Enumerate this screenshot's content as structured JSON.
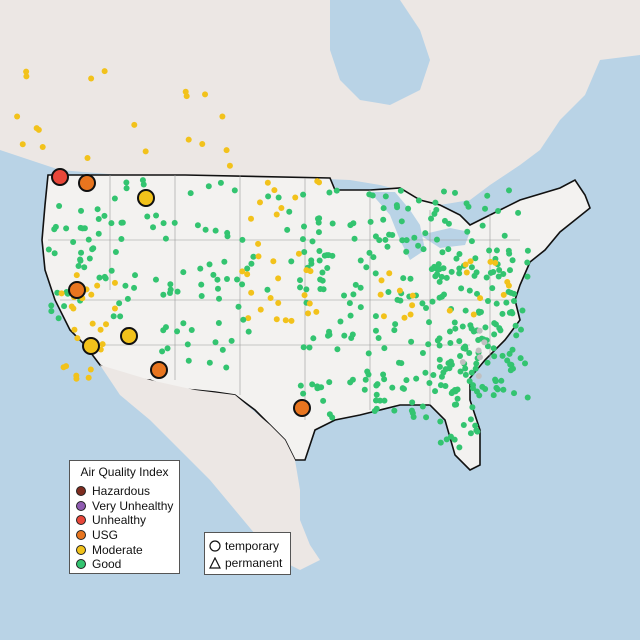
{
  "legend": {
    "title": "Air Quality Index",
    "categories": [
      {
        "label": "Hazardous",
        "color": "#7e2c1f"
      },
      {
        "label": "Very Unhealthy",
        "color": "#8f5bb1"
      },
      {
        "label": "Unhealthy",
        "color": "#e8473a"
      },
      {
        "label": "USG",
        "color": "#e8751f"
      },
      {
        "label": "Moderate",
        "color": "#f2c21b"
      },
      {
        "label": "Good",
        "color": "#33c470"
      }
    ]
  },
  "shape_legend": {
    "temporary": "temporary",
    "permanent": "permanent"
  },
  "colors": {
    "water": "#b9d3e6",
    "land": "#ede9e6",
    "us_land": "#f1f0ee",
    "border": "#111111",
    "no_data": "#c0c0c0"
  }
}
